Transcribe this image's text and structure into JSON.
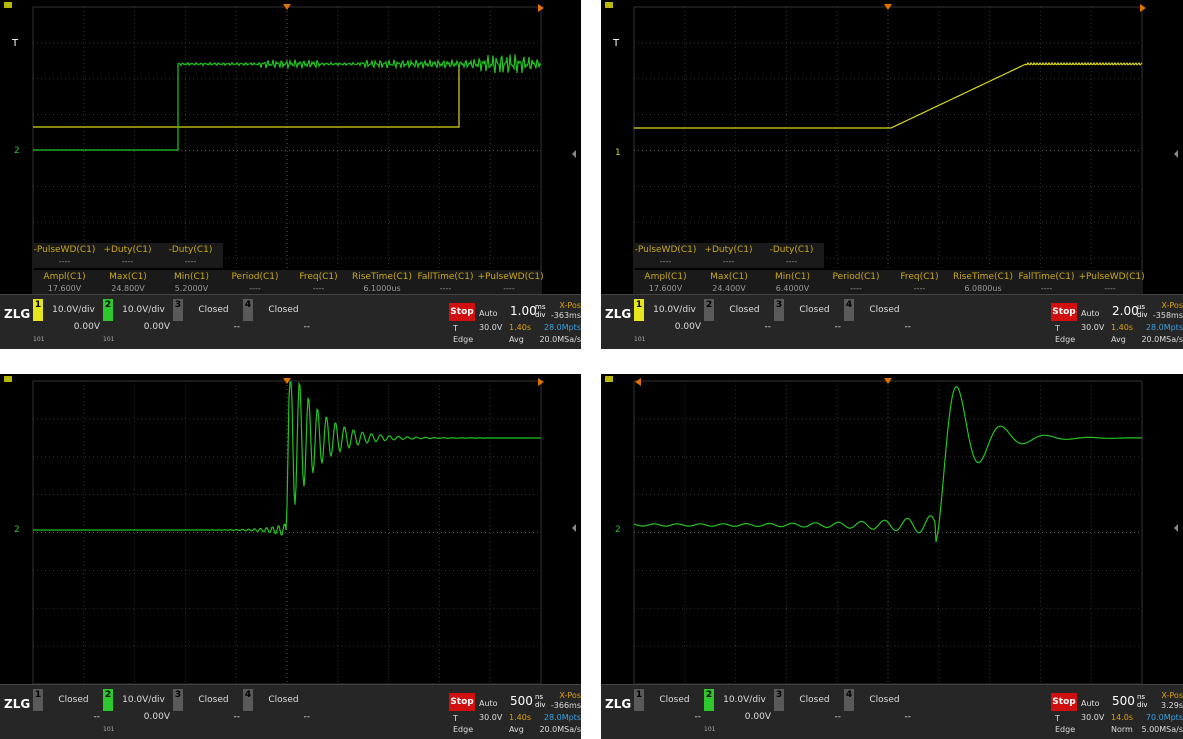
{
  "panels": [
    {
      "trigger_marker": "T",
      "channel_marker": "2",
      "measurements": {
        "extra": [
          {
            "label": "-PulseWD(C1)",
            "value": "----"
          },
          {
            "label": "+Duty(C1)",
            "value": "----"
          },
          {
            "label": "-Duty(C1)",
            "value": "----"
          }
        ],
        "main": [
          {
            "label": "Ampl(C1)",
            "value": "17.600V"
          },
          {
            "label": "Max(C1)",
            "value": "24.800V"
          },
          {
            "label": "Min(C1)",
            "value": "5.2000V"
          },
          {
            "label": "Period(C1)",
            "value": "----"
          },
          {
            "label": "Freq(C1)",
            "value": "----"
          },
          {
            "label": "RiseTime(C1)",
            "value": "6.1000us"
          },
          {
            "label": "FallTime(C1)",
            "value": "----"
          },
          {
            "label": "+PulseWD(C1)",
            "value": "----"
          }
        ]
      },
      "status": {
        "logo": "ZLG",
        "channels": [
          {
            "number": "1",
            "scale": "10.0V/div",
            "offset": "0.00V",
            "color": "#e6e61e",
            "note": "101"
          },
          {
            "number": "2",
            "scale": "10.0V/div",
            "offset": "0.00V",
            "color": "#2ec82e",
            "note": "101"
          },
          {
            "number": "3",
            "scale": "Closed",
            "offset": "--",
            "color": "#5a5a5a"
          },
          {
            "number": "4",
            "scale": "Closed",
            "offset": "--",
            "color": "#5a5a5a"
          }
        ],
        "run_state": "Stop",
        "trigger_mode": "Auto",
        "trigger_source": "T",
        "trigger_level": "30.0V",
        "trigger_type": "Edge",
        "trigger_time": "1.40s",
        "acquisition": "Avg",
        "timebase": "1.00",
        "timebase_unit": "ms",
        "timebase_div": "div",
        "xpos_label": "X-Pos",
        "xpos": "-363ms",
        "memory": "28.0Mpts",
        "sample_rate": "20.0MSa/s"
      }
    },
    {
      "trigger_marker": "T",
      "channel_marker": "1",
      "measurements": {
        "extra": [
          {
            "label": "-PulseWD(C1)",
            "value": "----"
          },
          {
            "label": "+Duty(C1)",
            "value": "----"
          },
          {
            "label": "-Duty(C1)",
            "value": "----"
          }
        ],
        "main": [
          {
            "label": "Ampl(C1)",
            "value": "17.600V"
          },
          {
            "label": "Max(C1)",
            "value": "24.400V"
          },
          {
            "label": "Min(C1)",
            "value": "6.4000V"
          },
          {
            "label": "Period(C1)",
            "value": "----"
          },
          {
            "label": "Freq(C1)",
            "value": "----"
          },
          {
            "label": "RiseTime(C1)",
            "value": "6.0800us"
          },
          {
            "label": "FallTime(C1)",
            "value": "----"
          },
          {
            "label": "+PulseWD(C1)",
            "value": "----"
          }
        ]
      },
      "status": {
        "logo": "ZLG",
        "channels": [
          {
            "number": "1",
            "scale": "10.0V/div",
            "offset": "0.00V",
            "color": "#e6e61e",
            "note": "101"
          },
          {
            "number": "2",
            "scale": "Closed",
            "offset": "--",
            "color": "#5a5a5a"
          },
          {
            "number": "3",
            "scale": "Closed",
            "offset": "--",
            "color": "#5a5a5a"
          },
          {
            "number": "4",
            "scale": "Closed",
            "offset": "--",
            "color": "#5a5a5a"
          }
        ],
        "run_state": "Stop",
        "trigger_mode": "Auto",
        "trigger_source": "T",
        "trigger_level": "30.0V",
        "trigger_type": "Edge",
        "trigger_time": "1.40s",
        "acquisition": "Avg",
        "timebase": "2.00",
        "timebase_unit": "us",
        "timebase_div": "div",
        "xpos_label": "X-Pos",
        "xpos": "-358ms",
        "memory": "28.0Mpts",
        "sample_rate": "20.0MSa/s"
      }
    },
    {
      "channel_marker": "2",
      "status": {
        "logo": "ZLG",
        "channels": [
          {
            "number": "1",
            "scale": "Closed",
            "offset": "--",
            "color": "#5a5a5a"
          },
          {
            "number": "2",
            "scale": "10.0V/div",
            "offset": "0.00V",
            "color": "#2ec82e",
            "note": "101"
          },
          {
            "number": "3",
            "scale": "Closed",
            "offset": "--",
            "color": "#5a5a5a"
          },
          {
            "number": "4",
            "scale": "Closed",
            "offset": "--",
            "color": "#5a5a5a"
          }
        ],
        "run_state": "Stop",
        "trigger_mode": "Auto",
        "trigger_source": "T",
        "trigger_level": "30.0V",
        "trigger_type": "Edge",
        "trigger_time": "1.40s",
        "acquisition": "Avg",
        "timebase": "500",
        "timebase_unit": "ns",
        "timebase_div": "div",
        "xpos_label": "X-Pos",
        "xpos": "-366ms",
        "memory": "28.0Mpts",
        "sample_rate": "20.0MSa/s"
      }
    },
    {
      "channel_marker": "2",
      "status": {
        "logo": "ZLG",
        "channels": [
          {
            "number": "1",
            "scale": "Closed",
            "offset": "--",
            "color": "#5a5a5a"
          },
          {
            "number": "2",
            "scale": "10.0V/div",
            "offset": "0.00V",
            "color": "#2ec82e",
            "note": "101"
          },
          {
            "number": "3",
            "scale": "Closed",
            "offset": "--",
            "color": "#5a5a5a"
          },
          {
            "number": "4",
            "scale": "Closed",
            "offset": "--",
            "color": "#5a5a5a"
          }
        ],
        "run_state": "Stop",
        "trigger_mode": "Auto",
        "trigger_source": "T",
        "trigger_level": "30.0V",
        "trigger_type": "Edge",
        "trigger_time": "14.0s",
        "acquisition": "Norm",
        "timebase": "500",
        "timebase_unit": "ns",
        "timebase_div": "div",
        "xpos_label": "X-Pos",
        "xpos": "3.29s",
        "memory": "70.0Mpts",
        "sample_rate": "5.00MSa/s"
      }
    }
  ]
}
